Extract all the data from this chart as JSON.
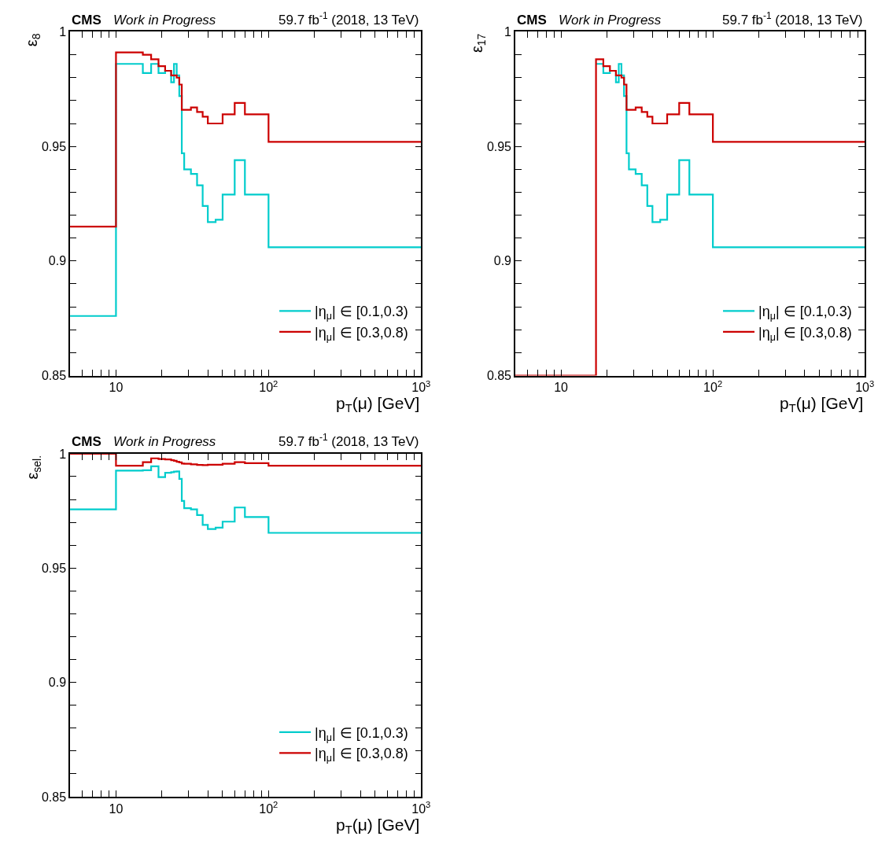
{
  "chart_data": [
    {
      "type": "step",
      "title": "CMS",
      "subtitle": "Work in Progress",
      "annotations": [
        "59.7 fb$^{-1}$ (2018, 13 TeV)"
      ],
      "xlabel": "p$_{T}$(μ) [GeV]",
      "ylabel": "ε$_{8}$",
      "log": "x",
      "legend": "bottom right",
      "x": [
        5,
        10,
        15,
        17,
        19,
        21,
        23,
        24,
        25,
        26,
        27,
        28,
        31,
        34,
        37,
        40,
        45,
        50,
        60,
        70,
        100,
        1000
      ],
      "series": [
        {
          "name": "|η$_{μ}$| ∈ [0.1,0.3)",
          "color": "#00cccc",
          "values": [
            0.876,
            0.986,
            0.982,
            0.986,
            0.982,
            0.983,
            0.978,
            0.986,
            0.981,
            0.972,
            0.947,
            0.94,
            0.938,
            0.933,
            0.924,
            0.917,
            0.918,
            0.929,
            0.944,
            0.929,
            0.906,
            0.906
          ]
        },
        {
          "name": "|η$_{μ}$| ∈ [0.3,0.8)",
          "color": "#cc0000",
          "values": [
            0.915,
            0.991,
            0.99,
            0.988,
            0.985,
            0.983,
            0.981,
            0.981,
            0.98,
            0.977,
            0.966,
            0.966,
            0.967,
            0.965,
            0.963,
            0.96,
            0.96,
            0.964,
            0.969,
            0.964,
            0.952,
            0.952
          ]
        }
      ],
      "xlim": [
        5,
        1000
      ],
      "ylim": [
        0.85,
        1
      ],
      "xticks": [
        {
          "value": 6,
          "label": null
        },
        {
          "value": 7,
          "label": null
        },
        {
          "value": 8,
          "label": null
        },
        {
          "value": 9,
          "label": null
        },
        10,
        {
          "value": 20,
          "label": null
        },
        {
          "value": 30,
          "label": null
        },
        {
          "value": 40,
          "label": null
        },
        {
          "value": 50,
          "label": null
        },
        {
          "value": 60,
          "label": null
        },
        {
          "value": 70,
          "label": null
        },
        {
          "value": 80,
          "label": null
        },
        {
          "value": 90,
          "label": null
        },
        {
          "value": 100,
          "label": "10$^{2}$"
        },
        {
          "value": 200,
          "label": null
        },
        {
          "value": 300,
          "label": null
        },
        {
          "value": 400,
          "label": null
        },
        {
          "value": 500,
          "label": null
        },
        {
          "value": 600,
          "label": null
        },
        {
          "value": 700,
          "label": null
        },
        {
          "value": 800,
          "label": null
        },
        {
          "value": 900,
          "label": null
        },
        {
          "value": 1000,
          "label": "10$^{3}$"
        }
      ],
      "yticks": [
        0.85,
        {
          "value": 0.86,
          "label": null
        },
        {
          "value": 0.87,
          "label": null
        },
        {
          "value": 0.88,
          "label": null
        },
        {
          "value": 0.89,
          "label": null
        },
        0.9,
        {
          "value": 0.91,
          "label": null
        },
        {
          "value": 0.92,
          "label": null
        },
        {
          "value": 0.93,
          "label": null
        },
        {
          "value": 0.94,
          "label": null
        },
        0.95,
        {
          "value": 0.96,
          "label": null
        },
        {
          "value": 0.97,
          "label": null
        },
        {
          "value": 0.98,
          "label": null
        },
        {
          "value": 0.99,
          "label": null
        },
        1
      ]
    },
    {
      "type": "step",
      "title": "CMS",
      "subtitle": "Work in Progress",
      "annotations": [
        "59.7 fb$^{-1}$ (2018, 13 TeV)"
      ],
      "xlabel": "p$_{T}$(μ) [GeV]",
      "ylabel": "ε$_{17}$",
      "log": "x",
      "legend": "bottom right",
      "x": [
        5,
        17,
        19,
        21,
        23,
        24,
        25,
        26,
        27,
        28,
        31,
        34,
        37,
        40,
        45,
        50,
        60,
        70,
        100,
        1000
      ],
      "series": [
        {
          "name": "|η$_{μ}$| ∈ [0.1,0.3)",
          "color": "#00cccc",
          "values": [
            null,
            0.986,
            0.982,
            0.983,
            0.978,
            0.986,
            0.981,
            0.972,
            0.947,
            0.94,
            0.938,
            0.933,
            0.924,
            0.917,
            0.918,
            0.929,
            0.944,
            0.929,
            0.906,
            0.906
          ]
        },
        {
          "name": "|η$_{μ}$| ∈ [0.3,0.8)",
          "color": "#cc0000",
          "values": [
            0.85,
            0.988,
            0.985,
            0.983,
            0.981,
            0.981,
            0.98,
            0.977,
            0.966,
            0.966,
            0.967,
            0.965,
            0.963,
            0.96,
            0.96,
            0.964,
            0.969,
            0.964,
            0.952,
            0.952
          ]
        }
      ],
      "xlim": [
        5,
        1000
      ],
      "ylim": [
        0.85,
        1
      ],
      "xticks": [
        {
          "value": 6,
          "label": null
        },
        {
          "value": 7,
          "label": null
        },
        {
          "value": 8,
          "label": null
        },
        {
          "value": 9,
          "label": null
        },
        10,
        {
          "value": 20,
          "label": null
        },
        {
          "value": 30,
          "label": null
        },
        {
          "value": 40,
          "label": null
        },
        {
          "value": 50,
          "label": null
        },
        {
          "value": 60,
          "label": null
        },
        {
          "value": 70,
          "label": null
        },
        {
          "value": 80,
          "label": null
        },
        {
          "value": 90,
          "label": null
        },
        {
          "value": 100,
          "label": "10$^{2}$"
        },
        {
          "value": 200,
          "label": null
        },
        {
          "value": 300,
          "label": null
        },
        {
          "value": 400,
          "label": null
        },
        {
          "value": 500,
          "label": null
        },
        {
          "value": 600,
          "label": null
        },
        {
          "value": 700,
          "label": null
        },
        {
          "value": 800,
          "label": null
        },
        {
          "value": 900,
          "label": null
        },
        {
          "value": 1000,
          "label": "10$^{3}$"
        }
      ],
      "yticks": [
        0.85,
        {
          "value": 0.86,
          "label": null
        },
        {
          "value": 0.87,
          "label": null
        },
        {
          "value": 0.88,
          "label": null
        },
        {
          "value": 0.89,
          "label": null
        },
        0.9,
        {
          "value": 0.91,
          "label": null
        },
        {
          "value": 0.92,
          "label": null
        },
        {
          "value": 0.93,
          "label": null
        },
        {
          "value": 0.94,
          "label": null
        },
        0.95,
        {
          "value": 0.96,
          "label": null
        },
        {
          "value": 0.97,
          "label": null
        },
        {
          "value": 0.98,
          "label": null
        },
        {
          "value": 0.99,
          "label": null
        },
        1
      ]
    },
    {
      "type": "step",
      "title": "CMS",
      "subtitle": "Work in Progress",
      "annotations": [
        "59.7 fb$^{-1}$ (2018, 13 TeV)"
      ],
      "xlabel": "p$_{T}$(μ) [GeV]",
      "ylabel": "ε$_{sel.}$",
      "log": "x",
      "legend": "bottom right",
      "x": [
        5,
        10,
        15,
        17,
        19,
        21,
        23,
        24,
        25,
        26,
        27,
        28,
        31,
        34,
        37,
        40,
        45,
        50,
        60,
        70,
        100,
        1000
      ],
      "series": [
        {
          "name": "|η$_{μ}$| ∈ [0.1,0.3)",
          "color": "#00cccc",
          "values": [
            0.9757,
            0.9926,
            0.9928,
            0.9945,
            0.9898,
            0.9917,
            0.9919,
            0.9922,
            0.9923,
            0.989,
            0.9794,
            0.9762,
            0.9757,
            0.9732,
            0.9689,
            0.9671,
            0.9677,
            0.9703,
            0.9765,
            0.9723,
            0.9654,
            0.9654
          ]
        },
        {
          "name": "|η$_{μ}$| ∈ [0.3,0.8)",
          "color": "#cc0000",
          "values": [
            1.0,
            0.9948,
            0.9963,
            0.998,
            0.9977,
            0.9975,
            0.9972,
            0.9969,
            0.9965,
            0.9962,
            0.9957,
            0.9956,
            0.9954,
            0.9951,
            0.995,
            0.9952,
            0.9952,
            0.9956,
            0.9963,
            0.9959,
            0.9948,
            0.9948
          ]
        }
      ],
      "xlim": [
        5,
        1000
      ],
      "ylim": [
        0.85,
        1
      ],
      "xticks": [
        {
          "value": 6,
          "label": null
        },
        {
          "value": 7,
          "label": null
        },
        {
          "value": 8,
          "label": null
        },
        {
          "value": 9,
          "label": null
        },
        10,
        {
          "value": 20,
          "label": null
        },
        {
          "value": 30,
          "label": null
        },
        {
          "value": 40,
          "label": null
        },
        {
          "value": 50,
          "label": null
        },
        {
          "value": 60,
          "label": null
        },
        {
          "value": 70,
          "label": null
        },
        {
          "value": 80,
          "label": null
        },
        {
          "value": 90,
          "label": null
        },
        {
          "value": 100,
          "label": "10$^{2}$"
        },
        {
          "value": 200,
          "label": null
        },
        {
          "value": 300,
          "label": null
        },
        {
          "value": 400,
          "label": null
        },
        {
          "value": 500,
          "label": null
        },
        {
          "value": 600,
          "label": null
        },
        {
          "value": 700,
          "label": null
        },
        {
          "value": 800,
          "label": null
        },
        {
          "value": 900,
          "label": null
        },
        {
          "value": 1000,
          "label": "10$^{3}$"
        }
      ],
      "yticks": [
        0.85,
        {
          "value": 0.86,
          "label": null
        },
        {
          "value": 0.87,
          "label": null
        },
        {
          "value": 0.88,
          "label": null
        },
        {
          "value": 0.89,
          "label": null
        },
        0.9,
        {
          "value": 0.91,
          "label": null
        },
        {
          "value": 0.92,
          "label": null
        },
        {
          "value": 0.93,
          "label": null
        },
        {
          "value": 0.94,
          "label": null
        },
        0.95,
        {
          "value": 0.96,
          "label": null
        },
        {
          "value": 0.97,
          "label": null
        },
        {
          "value": 0.98,
          "label": null
        },
        {
          "value": 0.99,
          "label": null
        },
        1
      ]
    }
  ]
}
